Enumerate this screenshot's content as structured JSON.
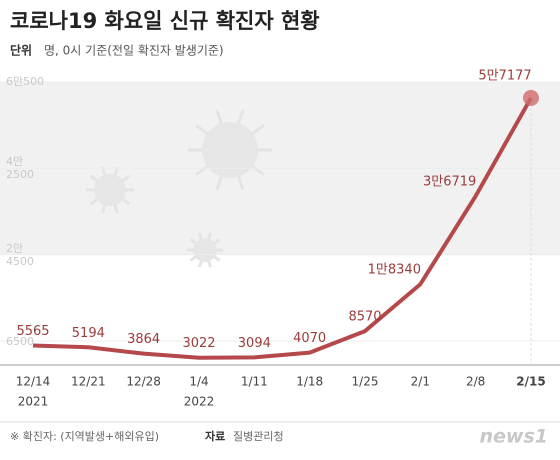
{
  "chart_data": {
    "type": "line",
    "title": "코로나19 화요일 신규 확진자 현황",
    "unit_label": "단위",
    "subtitle": "명, 0시 기준(전일 확진자 발생기준)",
    "categories": [
      "12/14",
      "12/21",
      "12/28",
      "1/4",
      "1/11",
      "1/18",
      "1/25",
      "2/1",
      "2/8",
      "2/15"
    ],
    "years": [
      "2021",
      null,
      null,
      "2022",
      null,
      null,
      null,
      null,
      null,
      null
    ],
    "series": [
      {
        "name": "신규 확진자",
        "color": "#b5484a",
        "values": [
          5565,
          5194,
          3864,
          3022,
          3094,
          4070,
          8570,
          18340,
          36719,
          57177
        ],
        "value_labels": [
          "5565",
          "5194",
          "3864",
          "3022",
          "3094",
          "4070",
          "8570",
          "1만8340",
          "3만6719",
          "5만7177"
        ]
      }
    ],
    "ylim": [
      1500,
      63000
    ],
    "yticks": [
      {
        "value": 6500,
        "label": "6500"
      },
      {
        "value": 24500,
        "label": "2만\n4500"
      },
      {
        "value": 42500,
        "label": "4만\n2500"
      },
      {
        "value": 60500,
        "label": "6만500"
      }
    ],
    "footer": {
      "note": "※ 확진자: (지역발생+해외유입)",
      "source_label": "자료",
      "source": "질병관리청"
    },
    "logo": "news1"
  }
}
